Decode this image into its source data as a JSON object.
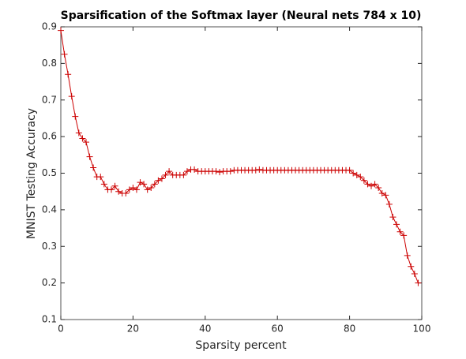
{
  "chart_data": {
    "type": "line",
    "title": "Sparsification of the Softmax layer (Neural nets 784 x 10)",
    "x_label": "Sparsity percent",
    "y_label": "MNIST Testing Accuracy",
    "color": "#cc0000",
    "x": [
      0,
      1,
      2,
      3,
      4,
      5,
      6,
      7,
      8,
      9,
      10,
      11,
      12,
      13,
      14,
      15,
      16,
      17,
      18,
      19,
      20,
      21,
      22,
      23,
      24,
      25,
      26,
      27,
      28,
      29,
      30,
      31,
      32,
      33,
      34,
      35,
      36,
      37,
      38,
      39,
      40,
      41,
      42,
      43,
      44,
      45,
      46,
      47,
      48,
      49,
      50,
      51,
      52,
      53,
      54,
      55,
      56,
      57,
      58,
      59,
      60,
      61,
      62,
      63,
      64,
      65,
      66,
      67,
      68,
      69,
      70,
      71,
      72,
      73,
      74,
      75,
      76,
      77,
      78,
      79,
      80,
      81,
      82,
      83,
      84,
      85,
      86,
      87,
      88,
      89,
      90,
      91,
      92,
      93,
      94,
      95,
      96,
      97,
      98,
      99
    ],
    "values": [
      0.89,
      0.825,
      0.77,
      0.71,
      0.655,
      0.61,
      0.595,
      0.585,
      0.545,
      0.515,
      0.49,
      0.49,
      0.47,
      0.455,
      0.455,
      0.465,
      0.45,
      0.445,
      0.445,
      0.455,
      0.46,
      0.455,
      0.475,
      0.47,
      0.455,
      0.46,
      0.47,
      0.48,
      0.485,
      0.495,
      0.505,
      0.495,
      0.495,
      0.495,
      0.495,
      0.505,
      0.51,
      0.51,
      0.505,
      0.505,
      0.505,
      0.505,
      0.505,
      0.505,
      0.503,
      0.505,
      0.505,
      0.505,
      0.508,
      0.508,
      0.508,
      0.508,
      0.508,
      0.508,
      0.508,
      0.51,
      0.508,
      0.508,
      0.508,
      0.508,
      0.508,
      0.508,
      0.508,
      0.508,
      0.508,
      0.508,
      0.508,
      0.508,
      0.508,
      0.508,
      0.508,
      0.508,
      0.508,
      0.508,
      0.508,
      0.508,
      0.508,
      0.508,
      0.508,
      0.508,
      0.508,
      0.5,
      0.495,
      0.49,
      0.48,
      0.47,
      0.465,
      0.47,
      0.46,
      0.445,
      0.44,
      0.415,
      0.38,
      0.36,
      0.34,
      0.33,
      0.275,
      0.245,
      0.225,
      0.2
    ],
    "xlim": [
      0,
      100
    ],
    "xticks": [
      0,
      20,
      40,
      60,
      80,
      100
    ],
    "ylim": [
      0.1,
      0.9
    ],
    "yticks": [
      0.1,
      0.2,
      0.3,
      0.4,
      0.5,
      0.6,
      0.7,
      0.8,
      0.9
    ],
    "marker": "+",
    "grid": false
  }
}
